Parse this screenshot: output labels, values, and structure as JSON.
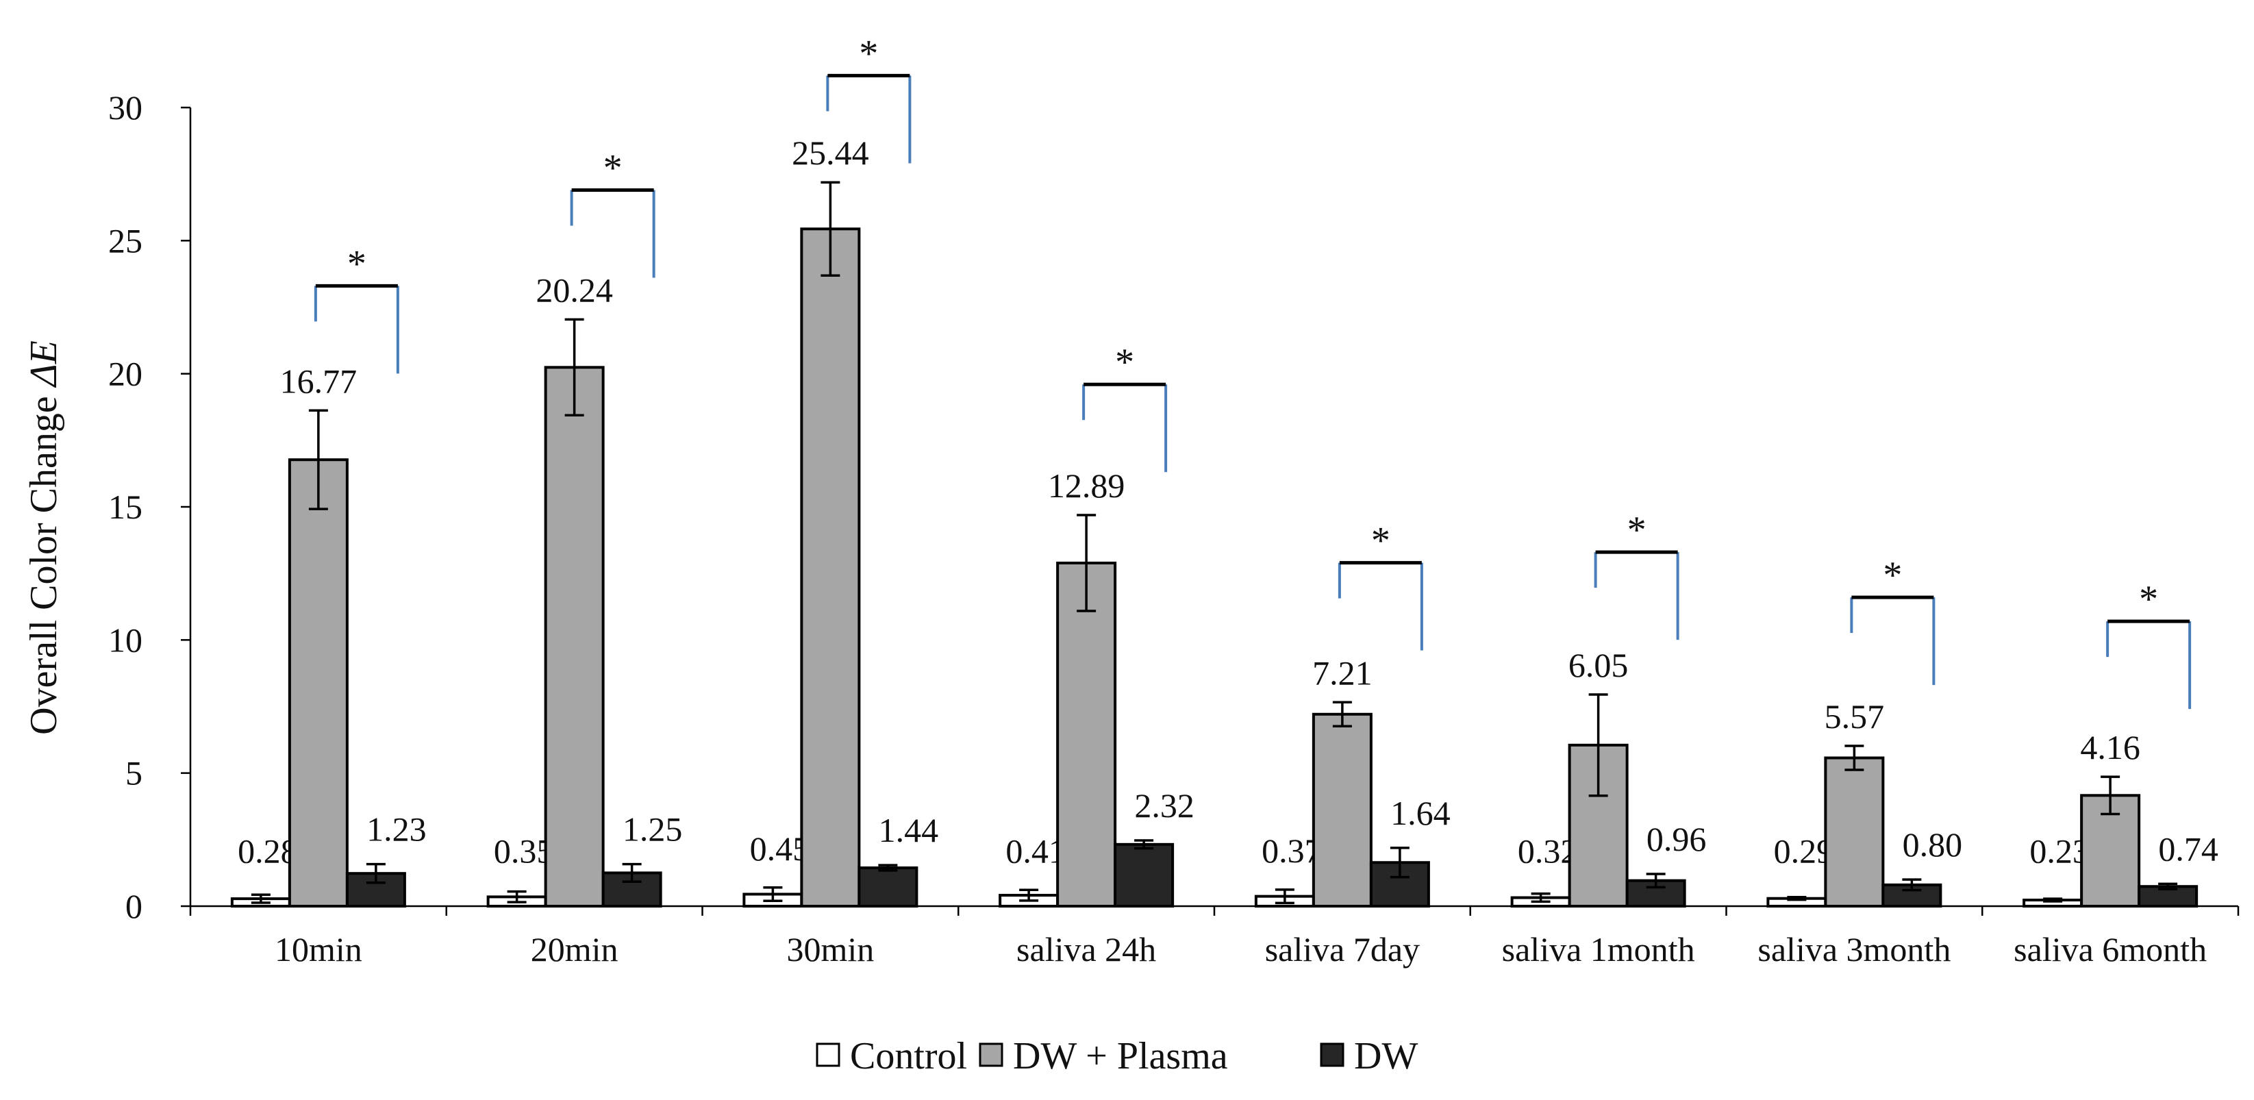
{
  "chart_data": {
    "type": "bar",
    "title": "",
    "xlabel": "",
    "ylabel": "Overall Color Change ",
    "ylabel_symbol": "ΔE",
    "ylim": [
      0,
      30
    ],
    "yticks": [
      0,
      5,
      10,
      15,
      20,
      25,
      30
    ],
    "grid": false,
    "legend_position": "bottom-center",
    "categories": [
      "10min",
      "20min",
      "30min",
      "saliva 24h",
      "saliva 7day",
      "saliva 1month",
      "saliva 3month",
      "saliva 6month"
    ],
    "series": [
      {
        "name": "Control",
        "color": "#ffffff",
        "values": [
          0.28,
          0.35,
          0.45,
          0.41,
          0.37,
          0.32,
          0.29,
          0.23
        ],
        "labels": [
          "0.28",
          "0.35",
          "0.45",
          "0.41",
          "0.37",
          "0.32",
          "0.29",
          "0.23"
        ],
        "errors": [
          0.15,
          0.2,
          0.25,
          0.2,
          0.25,
          0.15,
          0.05,
          0.05
        ]
      },
      {
        "name": "DW + Plasma",
        "color": "#a6a6a6",
        "values": [
          16.77,
          20.24,
          25.44,
          12.89,
          7.21,
          6.05,
          5.57,
          4.16
        ],
        "labels": [
          "16.77",
          "20.24",
          "25.44",
          "12.89",
          "7.21",
          "6.05",
          "5.57",
          "4.16"
        ],
        "errors": [
          1.85,
          1.8,
          1.75,
          1.8,
          0.45,
          1.9,
          0.45,
          0.7
        ]
      },
      {
        "name": "DW",
        "color": "#262626",
        "values": [
          1.23,
          1.25,
          1.44,
          2.32,
          1.64,
          0.96,
          0.8,
          0.74
        ],
        "labels": [
          "1.23",
          "1.25",
          "1.44",
          "2.32",
          "1.64",
          "0.96",
          "0.80",
          "0.74"
        ],
        "errors": [
          0.35,
          0.33,
          0.1,
          0.15,
          0.55,
          0.25,
          0.2,
          0.1
        ]
      }
    ],
    "significance": {
      "marker": "*",
      "comparison": [
        "DW + Plasma",
        "DW"
      ],
      "bracket_top_values": [
        23.3,
        26.9,
        31.2,
        19.6,
        12.9,
        13.3,
        11.6,
        10.7
      ],
      "bracket_colors": {
        "top": "#000000",
        "legs": "#4a7ebb"
      }
    }
  }
}
